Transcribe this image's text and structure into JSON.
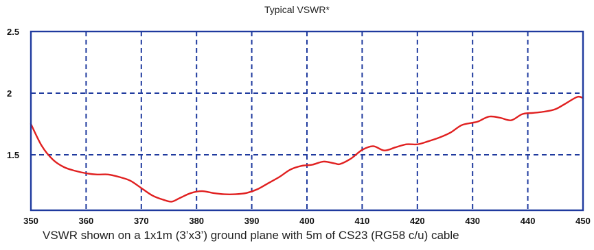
{
  "chart_data": {
    "type": "line",
    "title": "Typical VSWR*",
    "caption": "VSWR shown on a 1x1m (3’x3’) ground plane with 5m  of CS23 (RG58 c/u) cable",
    "xlim": [
      350,
      450
    ],
    "ylim": [
      1.05,
      2.5
    ],
    "x_ticks": [
      350,
      360,
      370,
      380,
      390,
      400,
      410,
      420,
      430,
      440,
      450
    ],
    "y_ticks": [
      {
        "value": 1.5,
        "label": "1.5"
      },
      {
        "value": 2,
        "label": "2"
      },
      {
        "value": 2.5,
        "label": "2.5"
      }
    ],
    "grid": true,
    "colors": {
      "line": "#e02020",
      "frame": "#1f3a9e",
      "grid": "#1f3a9e"
    },
    "series": [
      {
        "x": [
          350,
          352,
          354,
          356,
          358,
          360,
          362,
          364,
          366,
          368,
          370,
          372,
          374,
          375.5,
          377,
          379,
          381,
          383,
          385,
          387,
          389,
          391,
          393,
          395,
          397,
          399,
          401,
          403,
          405,
          406,
          408,
          410,
          412,
          414,
          416,
          418,
          420,
          422,
          424,
          426,
          428,
          430,
          431,
          433,
          435,
          437,
          439,
          441,
          443,
          445,
          447,
          449,
          450
        ],
        "y": [
          1.75,
          1.57,
          1.46,
          1.4,
          1.37,
          1.35,
          1.34,
          1.34,
          1.32,
          1.29,
          1.23,
          1.17,
          1.135,
          1.12,
          1.15,
          1.19,
          1.205,
          1.19,
          1.18,
          1.18,
          1.19,
          1.22,
          1.27,
          1.32,
          1.38,
          1.41,
          1.42,
          1.445,
          1.43,
          1.425,
          1.47,
          1.54,
          1.57,
          1.535,
          1.56,
          1.585,
          1.585,
          1.61,
          1.64,
          1.68,
          1.74,
          1.76,
          1.77,
          1.81,
          1.8,
          1.78,
          1.83,
          1.84,
          1.85,
          1.87,
          1.92,
          1.97,
          1.96
        ]
      }
    ]
  }
}
